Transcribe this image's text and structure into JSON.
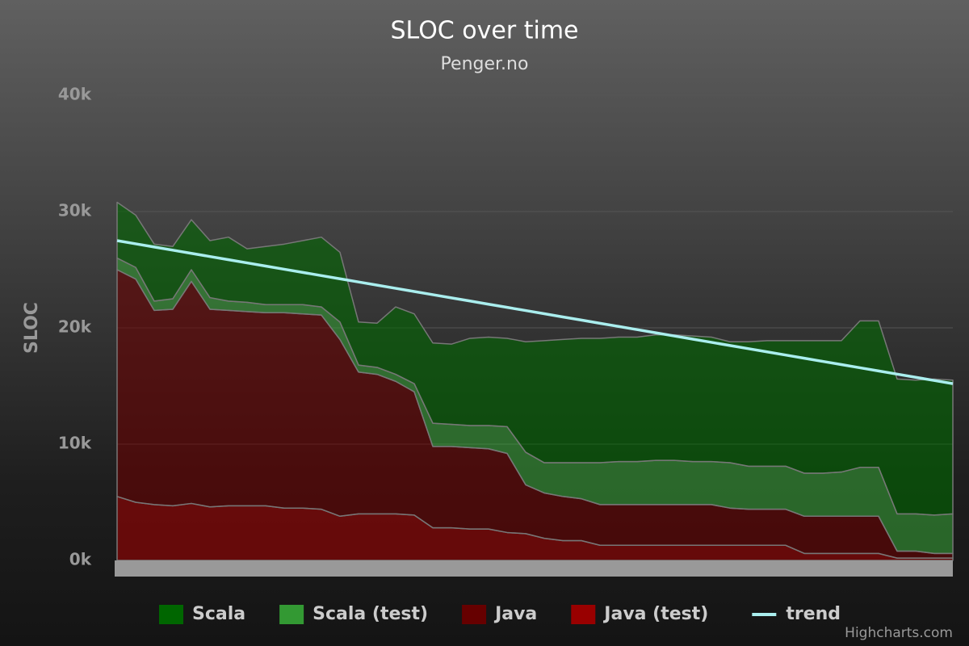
{
  "chart_data": {
    "type": "area",
    "stacking": "normal",
    "title": "SLOC over time",
    "subtitle": "Penger.no",
    "y_axis_label": "SLOC",
    "credits": "Highcharts.com",
    "ylim": [
      0,
      40000
    ],
    "yticks": [
      {
        "value": 0,
        "label": "0k"
      },
      {
        "value": 10000,
        "label": "10k"
      },
      {
        "value": 20000,
        "label": "20k"
      },
      {
        "value": 30000,
        "label": "30k"
      },
      {
        "value": 40000,
        "label": "40k"
      }
    ],
    "grid": true,
    "legend": "bottom",
    "series": [
      {
        "name": "Scala",
        "color": "#006600",
        "values": [
          4800,
          4500,
          4900,
          4500,
          4300,
          4900,
          5500,
          4600,
          5000,
          5200,
          5500,
          6000,
          6000,
          3700,
          3800,
          5800,
          6000,
          6900,
          6900,
          7500,
          7600,
          7600,
          9500,
          10500,
          10600,
          10700,
          10700,
          10700,
          10700,
          10800,
          10800,
          10800,
          10700,
          10400,
          10700,
          10800,
          10800,
          11400,
          11400,
          11300,
          12600,
          12600,
          11600,
          11500,
          11700,
          11500
        ]
      },
      {
        "name": "Scala (test)",
        "color": "#339933",
        "values": [
          1000,
          1000,
          800,
          900,
          1000,
          1000,
          800,
          800,
          700,
          700,
          800,
          700,
          1500,
          600,
          600,
          600,
          700,
          2000,
          1900,
          1900,
          2000,
          2300,
          2800,
          2600,
          2900,
          3100,
          3600,
          3700,
          3700,
          3800,
          3800,
          3700,
          3700,
          3900,
          3700,
          3700,
          3700,
          3700,
          3700,
          3800,
          4200,
          4200,
          3200,
          3200,
          3300,
          3400
        ]
      },
      {
        "name": "Java",
        "color": "#660000",
        "values": [
          19500,
          19200,
          16700,
          16900,
          19100,
          17000,
          16800,
          16700,
          16600,
          16800,
          16700,
          16700,
          15200,
          12200,
          12000,
          11400,
          10600,
          7000,
          7000,
          7000,
          6900,
          6800,
          4200,
          3900,
          3800,
          3600,
          3500,
          3500,
          3500,
          3500,
          3500,
          3500,
          3500,
          3200,
          3100,
          3100,
          3100,
          3200,
          3200,
          3200,
          3200,
          3200,
          600,
          600,
          400,
          400
        ]
      },
      {
        "name": "Java (test)",
        "color": "#990000",
        "values": [
          5500,
          5000,
          4800,
          4700,
          4900,
          4600,
          4700,
          4700,
          4700,
          4500,
          4500,
          4400,
          3800,
          4000,
          4000,
          4000,
          3900,
          2800,
          2800,
          2700,
          2700,
          2400,
          2300,
          1900,
          1700,
          1700,
          1300,
          1300,
          1300,
          1300,
          1300,
          1300,
          1300,
          1300,
          1300,
          1300,
          1300,
          600,
          600,
          600,
          600,
          600,
          200,
          200,
          200,
          200
        ]
      },
      {
        "name": "trend",
        "type": "line",
        "color": "#aaeeee",
        "values": [
          27500,
          27227,
          26953,
          26680,
          26407,
          26133,
          25860,
          25587,
          25313,
          25040,
          24767,
          24493,
          24220,
          23947,
          23673,
          23400,
          23127,
          22853,
          22580,
          22307,
          22033,
          21760,
          21487,
          21213,
          20940,
          20667,
          20393,
          20120,
          19847,
          19573,
          19300,
          19027,
          18753,
          18480,
          18207,
          17933,
          17660,
          17387,
          17113,
          16840,
          16567,
          16293,
          16020,
          15747,
          15473,
          15200
        ]
      }
    ]
  }
}
